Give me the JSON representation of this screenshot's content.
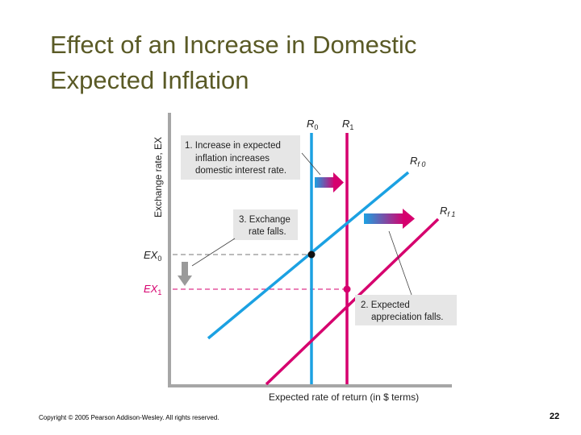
{
  "title": {
    "line1": "Effect of an Increase in Domestic",
    "line2": "Expected Inflation"
  },
  "diagram": {
    "y_axis_label": "Exchange rate, EX",
    "x_axis_label": "Expected rate of return (in $ terms)",
    "curves": {
      "r0": {
        "main": "R",
        "sub": "0"
      },
      "r1": {
        "main": "R",
        "sub": "1"
      },
      "rf0": {
        "main": "R",
        "sub": "f 0"
      },
      "rf1": {
        "main": "R",
        "sub": "f 1"
      }
    },
    "levels": {
      "ex0": {
        "main": "EX",
        "sub": "0"
      },
      "ex1": {
        "main": "EX",
        "sub": "1"
      }
    },
    "callouts": {
      "c1": [
        "1. Increase in expected",
        "inflation increases",
        "domestic interest rate."
      ],
      "c3": [
        "3. Exchange",
        "rate falls."
      ],
      "c2": [
        "2. Expected",
        "appreciation falls."
      ]
    },
    "colors": {
      "blue": "#1ba1e2",
      "magenta": "#d6006e",
      "axis": "#a6a6a6",
      "callout_bg": "#e6e6e6",
      "arrow_gray": "#9a9a9a"
    }
  },
  "footer": {
    "copyright": "Copyright © 2005 Pearson Addison-Wesley. All rights reserved.",
    "page": "22"
  }
}
